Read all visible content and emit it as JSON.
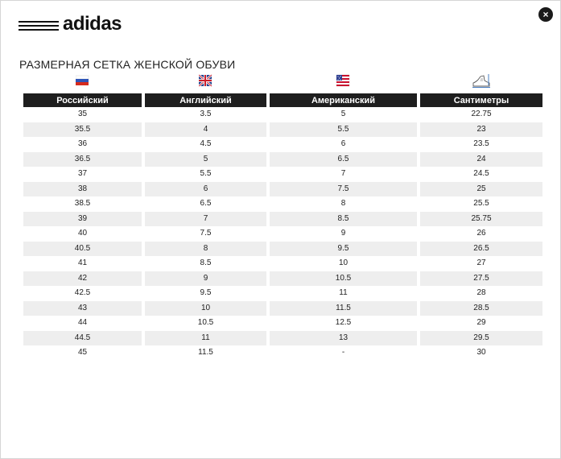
{
  "brand": {
    "name": "adidas",
    "icon": "adidas-stripes-logo"
  },
  "close_label": "×",
  "title": "РАЗМЕРНАЯ СЕТКА ЖЕНСКОЙ ОБУВИ",
  "columns": [
    {
      "label": "Российский",
      "icon": "russia-flag-icon"
    },
    {
      "label": "Английский",
      "icon": "uk-flag-icon"
    },
    {
      "label": "Американский",
      "icon": "usa-flag-icon"
    },
    {
      "label": "Сантиметры",
      "icon": "shoe-icon"
    }
  ],
  "rows": [
    [
      "35",
      "3.5",
      "5",
      "22.75"
    ],
    [
      "35.5",
      "4",
      "5.5",
      "23"
    ],
    [
      "36",
      "4.5",
      "6",
      "23.5"
    ],
    [
      "36.5",
      "5",
      "6.5",
      "24"
    ],
    [
      "37",
      "5.5",
      "7",
      "24.5"
    ],
    [
      "38",
      "6",
      "7.5",
      "25"
    ],
    [
      "38.5",
      "6.5",
      "8",
      "25.5"
    ],
    [
      "39",
      "7",
      "8.5",
      "25.75"
    ],
    [
      "40",
      "7.5",
      "9",
      "26"
    ],
    [
      "40.5",
      "8",
      "9.5",
      "26.5"
    ],
    [
      "41",
      "8.5",
      "10",
      "27"
    ],
    [
      "42",
      "9",
      "10.5",
      "27.5"
    ],
    [
      "42.5",
      "9.5",
      "11",
      "28"
    ],
    [
      "43",
      "10",
      "11.5",
      "28.5"
    ],
    [
      "44",
      "10.5",
      "12.5",
      "29"
    ],
    [
      "44.5",
      "11",
      "13",
      "29.5"
    ],
    [
      "45",
      "11.5",
      "-",
      "30"
    ]
  ],
  "colors": {
    "header_bg": "#1e1e1e",
    "alt_row_bg": "#eeeeee"
  }
}
